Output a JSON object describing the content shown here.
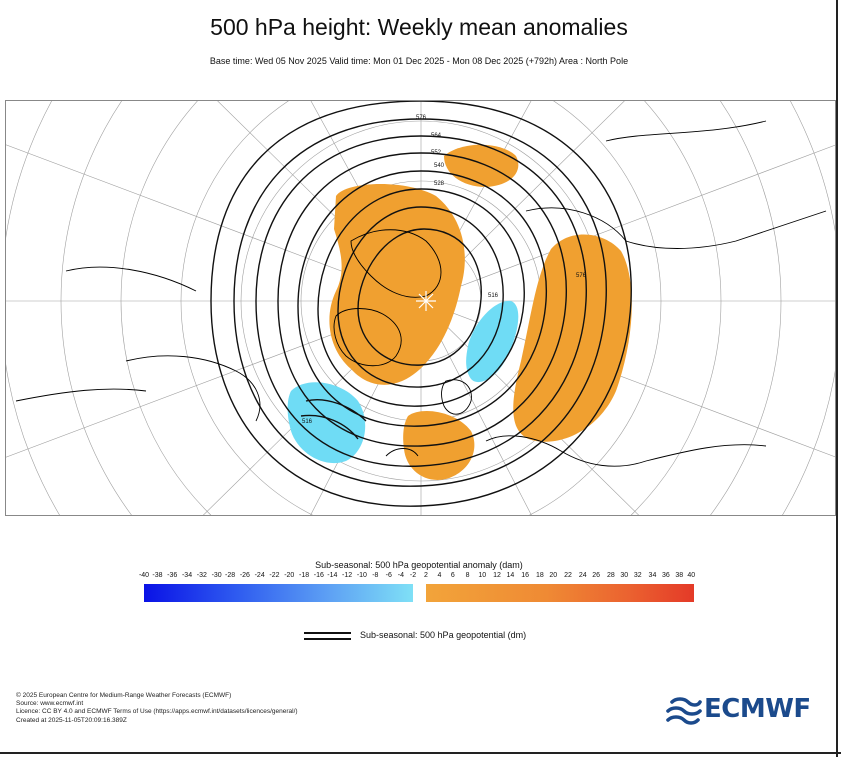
{
  "header": {
    "title": "500 hPa height: Weekly mean anomalies",
    "subtitle": "Base time: Wed 05 Nov 2025 Valid time: Mon 01 Dec 2025 - Mon 08 Dec 2025 (+792h) Area : North Pole"
  },
  "map": {
    "projection": "polar stereographic",
    "area": "North Pole",
    "contour_labels": [
      "576",
      "564",
      "552",
      "540",
      "528",
      "516",
      "576",
      "516"
    ],
    "anomaly_colors": {
      "positive": "#f0a030",
      "negative": "#6fdcf5",
      "contour": "#111111",
      "coastline": "#000000",
      "grid": "#999999"
    }
  },
  "colorbar": {
    "title": "Sub-seasonal: 500 hPa geopotential anomaly (dam)",
    "negative_ticks": [
      "-40",
      "-38",
      "-36",
      "-34",
      "-32",
      "-30",
      "-28",
      "-26",
      "-24",
      "-22",
      "-20",
      "-18",
      "-16",
      "-14",
      "-12",
      "-10",
      "-8",
      "-6",
      "-4",
      "-2"
    ],
    "positive_ticks": [
      "2",
      "4",
      "6",
      "8",
      "10",
      "12",
      "14",
      "16",
      "18",
      "20",
      "22",
      "24",
      "26",
      "28",
      "30",
      "32",
      "34",
      "36",
      "38",
      "40"
    ]
  },
  "line_legend": {
    "label": "Sub-seasonal: 500 hPa geopotential (dm)"
  },
  "credits": {
    "line1": "© 2025 European Centre for Medium-Range Weather Forecasts (ECMWF)",
    "line2": "Source: www.ecmwf.int",
    "line3": "Licence: CC BY 4.0 and ECMWF Terms of Use (https://apps.ecmwf.int/datasets/licences/general/)",
    "line4": "Created at 2025-11-05T20:09:16.389Z"
  },
  "logo": {
    "text": "ECMWF",
    "icon": "ecmwf-logo-icon",
    "color": "#1b4a8c"
  }
}
